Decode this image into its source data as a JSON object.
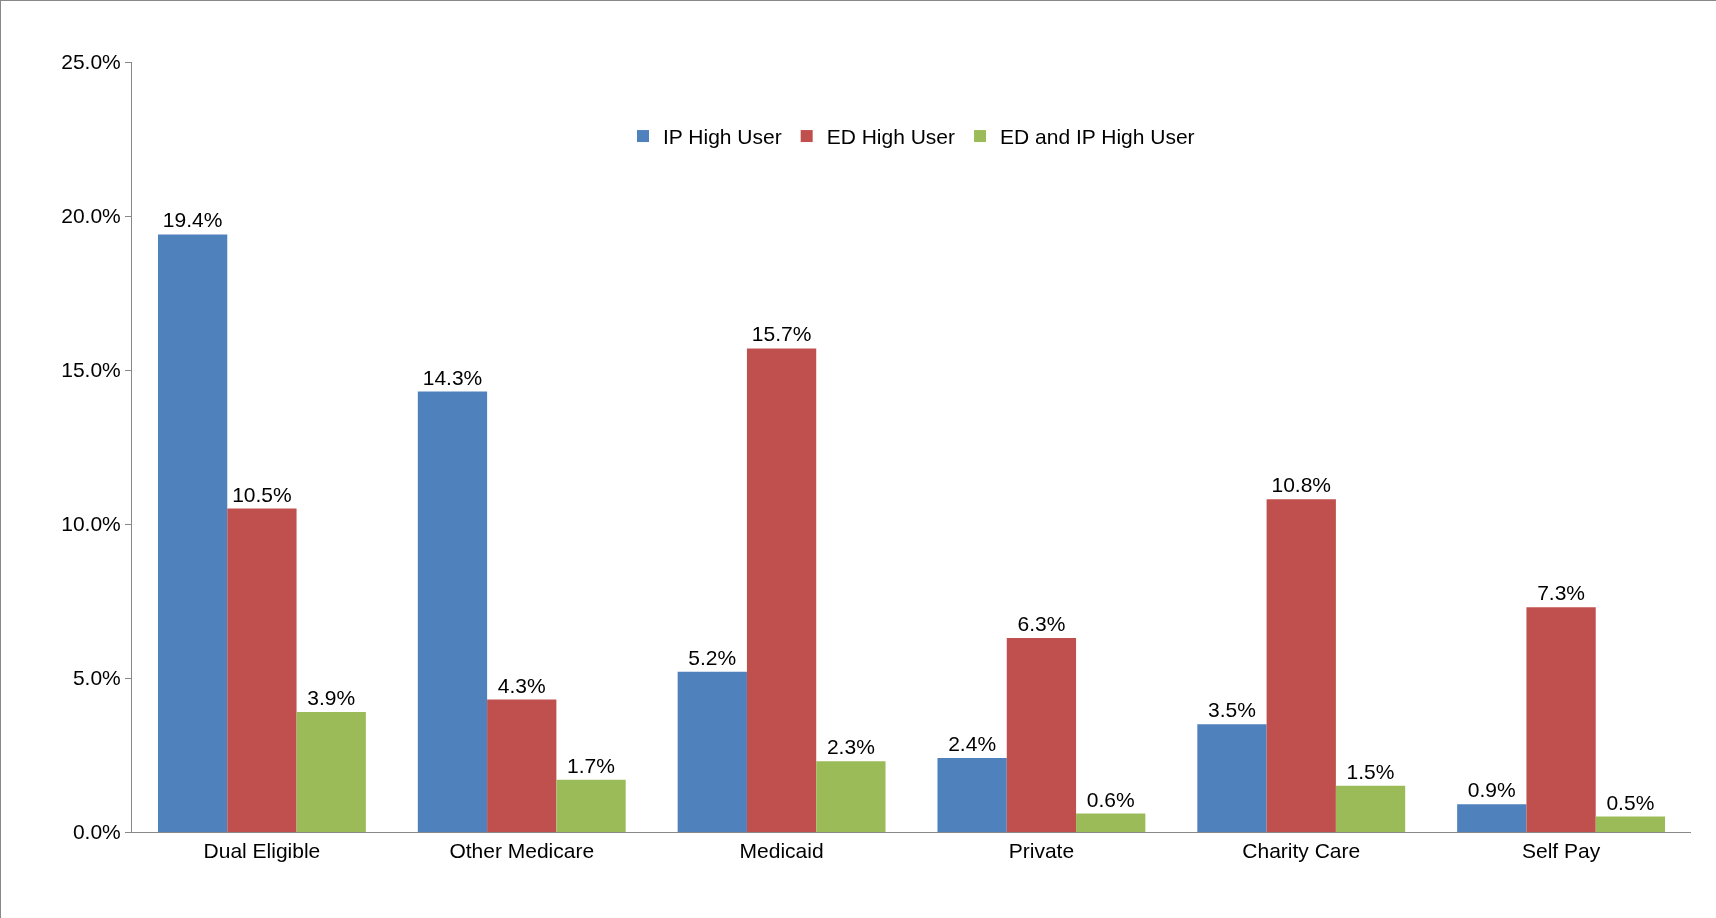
{
  "chart_data": {
    "type": "bar",
    "categories": [
      "Dual Eligible",
      "Other Medicare",
      "Medicaid",
      "Private",
      "Charity Care",
      "Self Pay"
    ],
    "series": [
      {
        "name": "IP High User",
        "color": "#4f81bd",
        "values": [
          19.4,
          14.3,
          5.2,
          2.4,
          3.5,
          0.9
        ],
        "value_labels": [
          "19.4%",
          "14.3%",
          "5.2%",
          "2.4%",
          "3.5%",
          "0.9%"
        ]
      },
      {
        "name": "ED High User",
        "color": "#c0504d",
        "values": [
          10.5,
          4.3,
          15.7,
          6.3,
          10.8,
          7.3
        ],
        "value_labels": [
          "10.5%",
          "4.3%",
          "15.7%",
          "6.3%",
          "10.8%",
          "7.3%"
        ]
      },
      {
        "name": "ED and IP High User",
        "color": "#9bbb59",
        "values": [
          3.9,
          1.7,
          2.3,
          0.6,
          1.5,
          0.5
        ],
        "value_labels": [
          "3.9%",
          "1.7%",
          "2.3%",
          "0.6%",
          "1.5%",
          "0.5%"
        ]
      }
    ],
    "ylim": [
      0,
      25
    ],
    "yticks": [
      {
        "value": 0,
        "label": "0.0%"
      },
      {
        "value": 5,
        "label": "5.0%"
      },
      {
        "value": 10,
        "label": "10.0%"
      },
      {
        "value": 15,
        "label": "15.0%"
      },
      {
        "value": 20,
        "label": "20.0%"
      },
      {
        "value": 25,
        "label": "25.0%"
      }
    ],
    "grid": false,
    "legend": "top"
  }
}
